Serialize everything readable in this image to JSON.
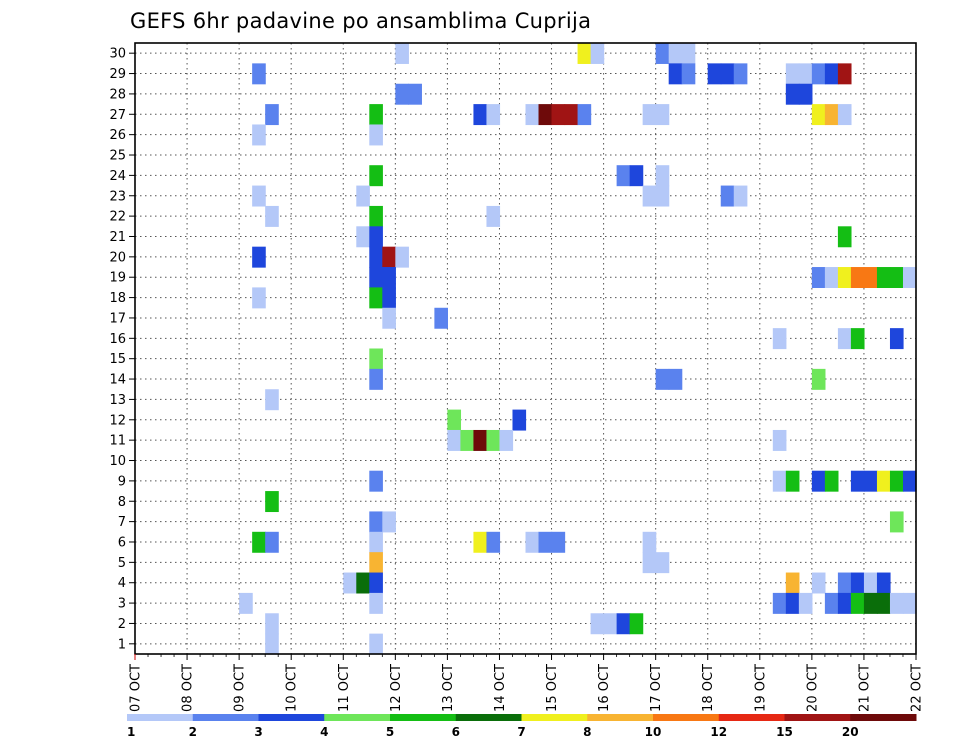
{
  "chart_data": {
    "type": "heatmap",
    "title": "GEFS 6hr padavine po ansamblima Cuprija",
    "x_ticks": [
      "07 OCT",
      "08 OCT",
      "09 OCT",
      "10 OCT",
      "11 OCT",
      "12 OCT",
      "13 OCT",
      "14 OCT",
      "15 OCT",
      "16 OCT",
      "17 OCT",
      "18 OCT",
      "19 OCT",
      "20 OCT",
      "21 OCT",
      "22 OCT"
    ],
    "y_ticks": [
      "1",
      "2",
      "3",
      "4",
      "5",
      "6",
      "7",
      "8",
      "9",
      "10",
      "11",
      "12",
      "13",
      "14",
      "15",
      "16",
      "17",
      "18",
      "19",
      "20",
      "21",
      "22",
      "23",
      "24",
      "25",
      "26",
      "27",
      "28",
      "29",
      "30"
    ],
    "x_range": [
      "07 OCT 00Z",
      "22 OCT 00Z"
    ],
    "y_range": [
      0.5,
      30.5
    ],
    "time_step_hours": 6,
    "grid": true,
    "colorbar": {
      "labels": [
        "1",
        "2",
        "3",
        "4",
        "5",
        "6",
        "7",
        "8",
        "10",
        "12",
        "15",
        "20"
      ],
      "colors": [
        "#b4c8f8",
        "#5a82ee",
        "#1e46dc",
        "#6ee65a",
        "#14be14",
        "#0a6e0a",
        "#f0f01e",
        "#f8b432",
        "#f87814",
        "#e62814",
        "#a01414",
        "#6e0a0a"
      ]
    },
    "cells_note": "cells: [member, start (day.fraction of OCT), value in mm]",
    "cells": [
      [
        30,
        12.0,
        1.5
      ],
      [
        30,
        15.5,
        7
      ],
      [
        30,
        15.75,
        1.5
      ],
      [
        30,
        17.0,
        2
      ],
      [
        30,
        17.25,
        1.5
      ],
      [
        30,
        17.5,
        1.5
      ],
      [
        29,
        9.25,
        2
      ],
      [
        29,
        17.25,
        3
      ],
      [
        29,
        17.5,
        2
      ],
      [
        29,
        18.0,
        3
      ],
      [
        29,
        18.25,
        3
      ],
      [
        29,
        18.5,
        2
      ],
      [
        29,
        19.5,
        1.5
      ],
      [
        29,
        19.75,
        1.5
      ],
      [
        29,
        20.0,
        2
      ],
      [
        29,
        20.25,
        3
      ],
      [
        29,
        20.5,
        15
      ],
      [
        28,
        12.0,
        2
      ],
      [
        28,
        12.25,
        2
      ],
      [
        28,
        19.5,
        3
      ],
      [
        28,
        19.75,
        3
      ],
      [
        27,
        9.5,
        2
      ],
      [
        27,
        11.5,
        5
      ],
      [
        27,
        13.5,
        3
      ],
      [
        27,
        13.75,
        1.5
      ],
      [
        27,
        14.5,
        1.5
      ],
      [
        27,
        14.75,
        20
      ],
      [
        27,
        15.0,
        15
      ],
      [
        27,
        15.25,
        15
      ],
      [
        27,
        15.5,
        2
      ],
      [
        27,
        16.75,
        1.5
      ],
      [
        27,
        17.0,
        1.5
      ],
      [
        27,
        20.0,
        7
      ],
      [
        27,
        20.25,
        8
      ],
      [
        27,
        20.5,
        1.5
      ],
      [
        26,
        9.25,
        1.5
      ],
      [
        26,
        11.5,
        1.5
      ],
      [
        24,
        11.5,
        5
      ],
      [
        24,
        16.25,
        2
      ],
      [
        24,
        16.5,
        3
      ],
      [
        24,
        17.0,
        1.5
      ],
      [
        23,
        9.25,
        1.5
      ],
      [
        23,
        11.25,
        1.5
      ],
      [
        23,
        16.75,
        1.5
      ],
      [
        23,
        17.0,
        1.5
      ],
      [
        23,
        18.25,
        2
      ],
      [
        23,
        18.5,
        1.5
      ],
      [
        22,
        9.5,
        1.5
      ],
      [
        22,
        11.5,
        5
      ],
      [
        22,
        13.75,
        1.5
      ],
      [
        21,
        11.25,
        1.5
      ],
      [
        21,
        11.5,
        3
      ],
      [
        21,
        20.5,
        5
      ],
      [
        20,
        9.25,
        3
      ],
      [
        20,
        11.5,
        3
      ],
      [
        20,
        11.75,
        15
      ],
      [
        20,
        12.0,
        1.5
      ],
      [
        19,
        11.5,
        3
      ],
      [
        19,
        11.75,
        3
      ],
      [
        19,
        20.0,
        2
      ],
      [
        19,
        20.25,
        1.5
      ],
      [
        19,
        20.5,
        7
      ],
      [
        19,
        20.75,
        10
      ],
      [
        19,
        21.0,
        10
      ],
      [
        19,
        21.25,
        5
      ],
      [
        19,
        21.5,
        5
      ],
      [
        19,
        21.75,
        1.5
      ],
      [
        18,
        11.5,
        5
      ],
      [
        18,
        11.75,
        3
      ],
      [
        18,
        9.25,
        1.5
      ],
      [
        17,
        11.75,
        1.5
      ],
      [
        17,
        12.75,
        2
      ],
      [
        16,
        19.25,
        1.5
      ],
      [
        16,
        20.5,
        1.5
      ],
      [
        16,
        20.75,
        5
      ],
      [
        16,
        21.5,
        3
      ],
      [
        15,
        11.5,
        4
      ],
      [
        14,
        11.5,
        2
      ],
      [
        14,
        17.0,
        2
      ],
      [
        14,
        17.25,
        2
      ],
      [
        14,
        20.0,
        4
      ],
      [
        13,
        9.5,
        1.5
      ],
      [
        12,
        13.0,
        4
      ],
      [
        12,
        14.25,
        3
      ],
      [
        11,
        13.0,
        1.5
      ],
      [
        11,
        13.25,
        4
      ],
      [
        11,
        13.5,
        20
      ],
      [
        11,
        13.75,
        4
      ],
      [
        11,
        14.0,
        1.5
      ],
      [
        11,
        19.25,
        1.5
      ],
      [
        9,
        11.5,
        2
      ],
      [
        9,
        19.25,
        1.5
      ],
      [
        9,
        19.5,
        5
      ],
      [
        9,
        20.0,
        3
      ],
      [
        9,
        20.25,
        5
      ],
      [
        9,
        20.75,
        3
      ],
      [
        9,
        21.0,
        3
      ],
      [
        9,
        21.25,
        7
      ],
      [
        9,
        21.5,
        5
      ],
      [
        9,
        21.75,
        3
      ],
      [
        8,
        9.5,
        5
      ],
      [
        7,
        11.5,
        2
      ],
      [
        7,
        11.75,
        1.5
      ],
      [
        7,
        21.5,
        4
      ],
      [
        6,
        9.25,
        5
      ],
      [
        6,
        9.5,
        2
      ],
      [
        6,
        11.5,
        1.5
      ],
      [
        6,
        13.5,
        7
      ],
      [
        6,
        13.75,
        2
      ],
      [
        6,
        14.5,
        1.5
      ],
      [
        6,
        14.75,
        2
      ],
      [
        6,
        15.0,
        2
      ],
      [
        6,
        16.75,
        1.5
      ],
      [
        5,
        11.5,
        8
      ],
      [
        5,
        16.75,
        1.5
      ],
      [
        5,
        17.0,
        1.5
      ],
      [
        4,
        11.0,
        1.5
      ],
      [
        4,
        11.25,
        6
      ],
      [
        4,
        11.5,
        3
      ],
      [
        4,
        19.5,
        8
      ],
      [
        4,
        20.0,
        1.5
      ],
      [
        4,
        20.5,
        2
      ],
      [
        4,
        20.75,
        3
      ],
      [
        4,
        21.0,
        1.5
      ],
      [
        4,
        21.25,
        3
      ],
      [
        3,
        9.0,
        1.5
      ],
      [
        3,
        11.5,
        1.5
      ],
      [
        3,
        19.25,
        2
      ],
      [
        3,
        19.5,
        3
      ],
      [
        3,
        19.75,
        1.5
      ],
      [
        3,
        20.25,
        2
      ],
      [
        3,
        20.5,
        3
      ],
      [
        3,
        20.75,
        5
      ],
      [
        3,
        21.0,
        6
      ],
      [
        3,
        21.25,
        6
      ],
      [
        3,
        21.5,
        1.5
      ],
      [
        3,
        21.75,
        1.5
      ],
      [
        2,
        9.5,
        1.5
      ],
      [
        2,
        15.75,
        1.5
      ],
      [
        2,
        16.0,
        1.5
      ],
      [
        2,
        16.25,
        3
      ],
      [
        2,
        16.5,
        5
      ],
      [
        1,
        9.5,
        1.5
      ],
      [
        1,
        11.5,
        1.5
      ]
    ]
  }
}
